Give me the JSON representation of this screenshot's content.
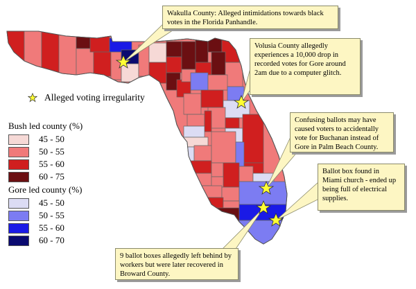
{
  "legend": {
    "star_label": "Alleged voting irregularity",
    "bush_title": "Bush led county (%)",
    "gore_title": "Gore led county (%)",
    "bush_ranges": [
      {
        "label": "45 - 50",
        "color": "#f6d9d6"
      },
      {
        "label": "50 - 55",
        "color": "#f07a7a"
      },
      {
        "label": "55 - 60",
        "color": "#d01f1f"
      },
      {
        "label": "60 - 75",
        "color": "#6b0f12"
      }
    ],
    "gore_ranges": [
      {
        "label": "45 - 50",
        "color": "#dcdcf4"
      },
      {
        "label": "50 - 55",
        "color": "#7c7cf2"
      },
      {
        "label": "55 - 60",
        "color": "#1a1ae6"
      },
      {
        "label": "60 - 70",
        "color": "#0a0a70"
      }
    ]
  },
  "callouts": {
    "wakulla": "Wakulla County: Alleged intimidations towards black votes in the Florida Panhandle.",
    "volusia": "Volusia County allegedly experiences a 10,000 drop in recorded votes for Gore around 2am due to a computer glitch.",
    "palm_beach": "Confusing ballots may have caused voters to accidentally vote for Buchanan instead of Gore in Palm Beach County.",
    "miami": "Ballot box found in Miami church - ended up being full of electrical supplies.",
    "broward": "9 ballot boxes allegedly left behind by workers but were later recovered in Broward County."
  },
  "colors": {
    "callout_bg": "#fdf6c3",
    "star": "#ffff33",
    "water": "#ffffff"
  }
}
